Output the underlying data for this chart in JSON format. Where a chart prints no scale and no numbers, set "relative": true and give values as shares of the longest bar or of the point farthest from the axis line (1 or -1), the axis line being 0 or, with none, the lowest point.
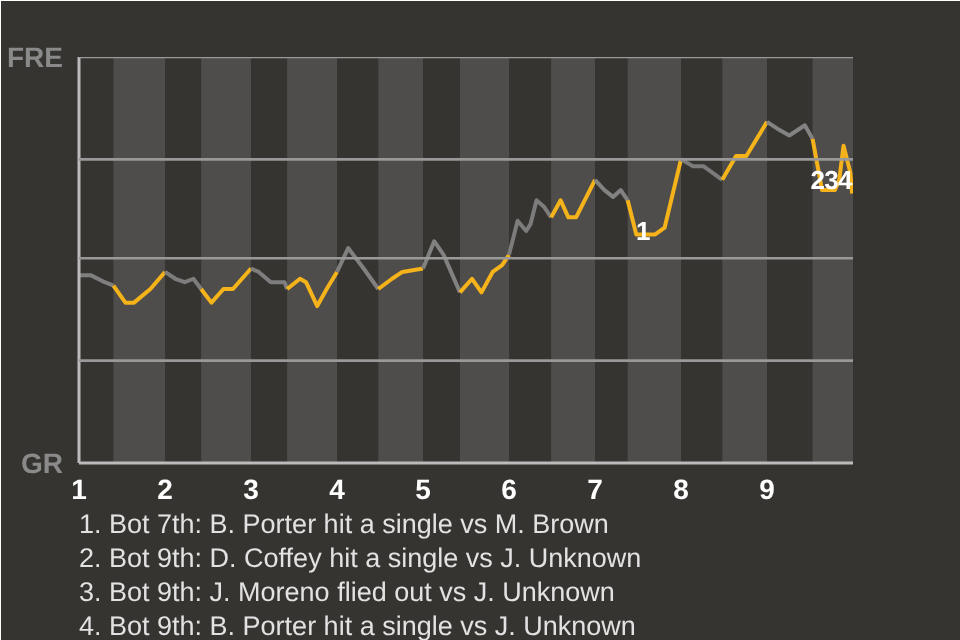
{
  "chart_data": {
    "type": "line",
    "relative": true,
    "xlim": [
      1,
      10
    ],
    "xticks": [
      1,
      2,
      3,
      4,
      5,
      6,
      7,
      8,
      9
    ],
    "ref_lines": [
      {
        "axis": "y",
        "value": 0.3,
        "color": "#999999"
      },
      {
        "axis": "y",
        "value": 0.6,
        "color": "#999999"
      },
      {
        "axis": "y",
        "value": 0.89,
        "color": "#999999"
      },
      {
        "axis": "y",
        "value": 1.19,
        "color": "#999999"
      }
    ],
    "line_style": "solid",
    "bands": [
      {
        "axis": "x",
        "from": 1.4,
        "to": 2,
        "color": "#4e4d4b"
      },
      {
        "axis": "x",
        "from": 2.42,
        "to": 3,
        "color": "#4e4d4b"
      },
      {
        "axis": "x",
        "from": 3.42,
        "to": 4,
        "color": "#4e4d4b"
      },
      {
        "axis": "x",
        "from": 4.48,
        "to": 5,
        "color": "#4e4d4b"
      },
      {
        "axis": "x",
        "from": 5.43,
        "to": 6,
        "color": "#4e4d4b"
      },
      {
        "axis": "x",
        "from": 6.49,
        "to": 7,
        "color": "#4e4d4b"
      },
      {
        "axis": "x",
        "from": 7.38,
        "to": 8,
        "color": "#4e4d4b"
      },
      {
        "axis": "x",
        "from": 8.48,
        "to": 9,
        "color": "#4e4d4b"
      },
      {
        "axis": "x",
        "from": 9.53,
        "to": 10,
        "color": "#4e4d4b"
      }
    ],
    "series": [
      {
        "color": "#7f7f7f",
        "x": [
          1.0,
          1.14,
          1.3,
          1.4
        ],
        "values": [
          0.55,
          0.55,
          0.53,
          0.52
        ]
      },
      {
        "color": "#f5b31a",
        "x": [
          1.4,
          1.54,
          1.64,
          1.83,
          2.0
        ],
        "values": [
          0.52,
          0.47,
          0.47,
          0.51,
          0.56
        ]
      },
      {
        "color": "#7d7d7d",
        "x": [
          2.0,
          2.12,
          2.23,
          2.33,
          2.42
        ],
        "values": [
          0.56,
          0.54,
          0.53,
          0.54,
          0.51
        ]
      },
      {
        "color": "#f5b41a",
        "x": [
          2.42,
          2.54,
          2.68,
          2.79,
          3.0
        ],
        "values": [
          0.51,
          0.47,
          0.51,
          0.51,
          0.57
        ]
      },
      {
        "color": "#7e7e7e",
        "x": [
          3.0,
          3.09,
          3.23,
          3.39,
          3.42
        ],
        "values": [
          0.57,
          0.56,
          0.53,
          0.53,
          0.51
        ]
      },
      {
        "color": "#f4b31a",
        "x": [
          3.42,
          3.57,
          3.64,
          3.77,
          3.88,
          4.0
        ],
        "values": [
          0.51,
          0.54,
          0.53,
          0.46,
          0.51,
          0.56
        ]
      },
      {
        "color": "#808080",
        "x": [
          4.0,
          4.13,
          4.31,
          4.48
        ],
        "values": [
          0.56,
          0.63,
          0.57,
          0.51
        ]
      },
      {
        "color": "#f5b21a",
        "x": [
          4.48,
          4.64,
          4.76,
          5.0
        ],
        "values": [
          0.51,
          0.54,
          0.56,
          0.57
        ]
      },
      {
        "color": "#818181",
        "x": [
          5.0,
          5.13,
          5.24,
          5.43
        ],
        "values": [
          0.57,
          0.65,
          0.61,
          0.5
        ]
      },
      {
        "color": "#f6b31a",
        "x": [
          5.43,
          5.57,
          5.68,
          5.81,
          5.92,
          6.0
        ],
        "values": [
          0.5,
          0.54,
          0.5,
          0.56,
          0.58,
          0.61
        ]
      },
      {
        "color": "#7c7c7c",
        "x": [
          6.0,
          6.1,
          6.2,
          6.25,
          6.32,
          6.41,
          6.49
        ],
        "values": [
          0.61,
          0.71,
          0.68,
          0.7,
          0.77,
          0.75,
          0.72
        ]
      },
      {
        "color": "#f5b31b",
        "x": [
          6.49,
          6.6,
          6.69,
          6.78,
          7.0
        ],
        "values": [
          0.72,
          0.77,
          0.72,
          0.72,
          0.83
        ]
      },
      {
        "color": "#828282",
        "x": [
          7.0,
          7.11,
          7.21,
          7.3,
          7.38
        ],
        "values": [
          0.83,
          0.8,
          0.78,
          0.8,
          0.77
        ]
      },
      {
        "color": "#f5b319",
        "x": [
          7.38,
          7.48,
          7.58,
          7.7,
          7.81,
          8.0
        ],
        "values": [
          0.77,
          0.67,
          0.67,
          0.67,
          0.69,
          0.89
        ]
      },
      {
        "color": "#7b7b7b",
        "x": [
          8.0,
          8.14,
          8.26,
          8.48
        ],
        "values": [
          0.89,
          0.87,
          0.87,
          0.83
        ]
      },
      {
        "color": "#f4b41a",
        "x": [
          8.48,
          8.64,
          8.76,
          9.0
        ],
        "values": [
          0.83,
          0.9,
          0.9,
          1.0
        ]
      },
      {
        "color": "#838383",
        "x": [
          9.0,
          9.12,
          9.26,
          9.44,
          9.53
        ],
        "values": [
          1.0,
          0.98,
          0.96,
          0.99,
          0.95
        ]
      },
      {
        "color": "#f6b21a",
        "x": [
          9.53,
          9.64,
          9.79,
          9.84,
          9.89,
          9.92,
          9.97,
          9.99
        ],
        "values": [
          0.95,
          0.8,
          0.8,
          0.83,
          0.93,
          0.9,
          0.85,
          0.79
        ]
      }
    ],
    "annotations": [
      "FRE",
      "GR",
      {
        "text": "1",
        "x": 7.56,
        "y": 0.68
      },
      {
        "text": "2",
        "x": 9.59,
        "y": 0.83
      },
      {
        "text": "3",
        "x": 9.75,
        "y": 0.83
      },
      {
        "text": "4",
        "x": 9.91,
        "y": 0.83
      },
      "1. Bot 7th: B. Porter hit a single vs M. Brown",
      "2. Bot 9th: D. Coffey hit a single vs J. Unknown",
      "3. Bot 9th: J. Moreno flied out vs J. Unknown",
      "4. Bot 9th: B. Porter hit a single vs J. Unknown"
    ]
  }
}
